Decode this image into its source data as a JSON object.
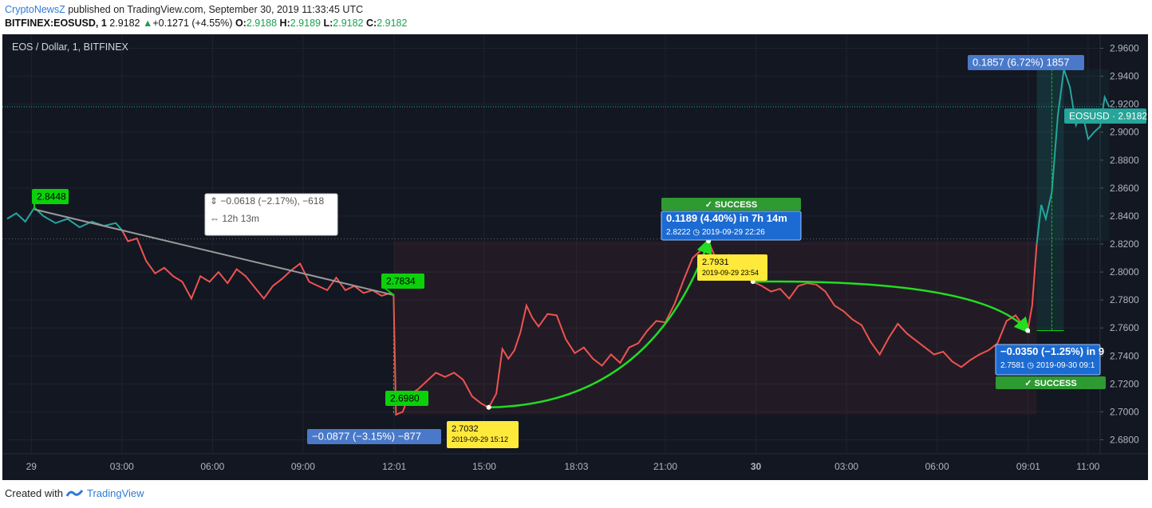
{
  "header": {
    "publisher": "CryptoNewsZ",
    "published_text": "published on TradingView.com, September 30, 2019 11:33:45 UTC",
    "symbol": "BITFINEX:EOSUSD, 1",
    "last": "2.9182",
    "change": "+0.1271 (+4.55%)",
    "open_label": "O:",
    "open": "2.9188",
    "high_label": "H:",
    "high": "2.9189",
    "low_label": "L:",
    "low": "2.9182",
    "close_label": "C:",
    "close": "2.9182"
  },
  "footer": {
    "created_with": "Created with",
    "brand": "TradingView"
  },
  "colors": {
    "background": "#131722",
    "down_line": "#ef5350",
    "up_line": "#26a69a",
    "trend_arrow": "#22dd22",
    "label_green": "#0bd10b",
    "label_blue": "#4a79c9",
    "label_yellow": "#ffe93b",
    "success_green": "#2e9a32",
    "gray_line": "#9a9a9a"
  },
  "chart_data": {
    "type": "line",
    "title": "EOS / Dollar, 1, BITFINEX",
    "ylim": [
      2.67,
      2.97
    ],
    "y_ticks": [
      "2.9600",
      "2.9400",
      "2.9200",
      "2.9000",
      "2.8800",
      "2.8600",
      "2.8400",
      "2.8200",
      "2.8000",
      "2.7800",
      "2.7600",
      "2.7400",
      "2.7200",
      "2.7000",
      "2.6800"
    ],
    "y_tick_values": [
      2.96,
      2.94,
      2.92,
      2.9,
      2.88,
      2.86,
      2.84,
      2.82,
      2.8,
      2.78,
      2.76,
      2.74,
      2.72,
      2.7,
      2.68
    ],
    "x_range_hours": [
      -0.8,
      35.4
    ],
    "x_ticks": [
      {
        "label": "29",
        "t": 0,
        "bold": false
      },
      {
        "label": "03:00",
        "t": 3,
        "bold": false
      },
      {
        "label": "06:00",
        "t": 6,
        "bold": false
      },
      {
        "label": "09:00",
        "t": 9,
        "bold": false
      },
      {
        "label": "12:01",
        "t": 12.02,
        "bold": false
      },
      {
        "label": "15:00",
        "t": 15,
        "bold": false
      },
      {
        "label": "18:03",
        "t": 18.05,
        "bold": false
      },
      {
        "label": "21:00",
        "t": 21,
        "bold": false
      },
      {
        "label": "30",
        "t": 24,
        "bold": true
      },
      {
        "label": "03:00",
        "t": 27,
        "bold": false
      },
      {
        "label": "06:00",
        "t": 30,
        "bold": false
      },
      {
        "label": "09:01",
        "t": 33.02,
        "bold": false
      },
      {
        "label": "11:00",
        "t": 35,
        "bold": false
      }
    ],
    "x_unit": "hours from 2019-09-29 00:00 UTC",
    "last_price_label": "EOSUSD",
    "last_price": 2.9182,
    "series": [
      {
        "color_key": "up_line",
        "points": [
          [
            -0.8,
            2.838
          ],
          [
            -0.5,
            2.842
          ],
          [
            -0.2,
            2.836
          ],
          [
            0.1,
            2.846
          ],
          [
            0.4,
            2.84
          ],
          [
            0.8,
            2.835
          ],
          [
            1.2,
            2.838
          ],
          [
            1.6,
            2.832
          ],
          [
            2.0,
            2.836
          ],
          [
            2.4,
            2.833
          ],
          [
            2.8,
            2.835
          ],
          [
            3.0,
            2.83
          ]
        ]
      },
      {
        "color_key": "down_line",
        "points": [
          [
            3.0,
            2.83
          ],
          [
            3.2,
            2.822
          ],
          [
            3.5,
            2.824
          ],
          [
            3.8,
            2.808
          ],
          [
            4.1,
            2.799
          ],
          [
            4.4,
            2.803
          ],
          [
            4.7,
            2.797
          ],
          [
            5.0,
            2.793
          ],
          [
            5.3,
            2.781
          ],
          [
            5.6,
            2.797
          ],
          [
            5.9,
            2.793
          ],
          [
            6.2,
            2.8
          ],
          [
            6.5,
            2.792
          ],
          [
            6.8,
            2.802
          ],
          [
            7.1,
            2.797
          ],
          [
            7.4,
            2.789
          ],
          [
            7.7,
            2.781
          ],
          [
            8.0,
            2.79
          ],
          [
            8.3,
            2.795
          ],
          [
            8.6,
            2.801
          ],
          [
            8.9,
            2.806
          ],
          [
            9.2,
            2.793
          ],
          [
            9.5,
            2.79
          ],
          [
            9.8,
            2.787
          ],
          [
            10.1,
            2.796
          ],
          [
            10.4,
            2.787
          ],
          [
            10.7,
            2.79
          ],
          [
            11.0,
            2.785
          ],
          [
            11.3,
            2.787
          ],
          [
            11.6,
            2.783
          ],
          [
            11.9,
            2.785
          ],
          [
            12.0,
            2.783
          ],
          [
            12.08,
            2.698
          ],
          [
            12.3,
            2.7
          ],
          [
            12.5,
            2.712
          ],
          [
            12.8,
            2.716
          ],
          [
            13.1,
            2.722
          ],
          [
            13.4,
            2.728
          ],
          [
            13.7,
            2.725
          ],
          [
            14.0,
            2.728
          ],
          [
            14.3,
            2.723
          ],
          [
            14.6,
            2.711
          ],
          [
            14.9,
            2.706
          ],
          [
            15.15,
            2.703
          ],
          [
            15.4,
            2.713
          ],
          [
            15.6,
            2.745
          ],
          [
            15.8,
            2.738
          ],
          [
            16.0,
            2.744
          ],
          [
            16.2,
            2.757
          ],
          [
            16.4,
            2.776
          ],
          [
            16.6,
            2.767
          ],
          [
            16.8,
            2.761
          ],
          [
            17.1,
            2.77
          ],
          [
            17.4,
            2.769
          ],
          [
            17.7,
            2.752
          ],
          [
            18.0,
            2.742
          ],
          [
            18.3,
            2.746
          ],
          [
            18.6,
            2.738
          ],
          [
            18.9,
            2.733
          ],
          [
            19.2,
            2.741
          ],
          [
            19.5,
            2.735
          ],
          [
            19.8,
            2.746
          ],
          [
            20.1,
            2.749
          ],
          [
            20.4,
            2.758
          ],
          [
            20.7,
            2.765
          ],
          [
            21.0,
            2.764
          ],
          [
            21.3,
            2.777
          ],
          [
            21.6,
            2.794
          ],
          [
            21.9,
            2.81
          ],
          [
            22.2,
            2.816
          ],
          [
            22.43,
            2.822
          ],
          [
            22.7,
            2.808
          ],
          [
            22.9,
            2.8
          ],
          [
            23.1,
            2.812
          ],
          [
            23.35,
            2.806
          ],
          [
            23.6,
            2.798
          ],
          [
            23.9,
            2.793
          ],
          [
            24.2,
            2.79
          ],
          [
            24.5,
            2.786
          ],
          [
            24.8,
            2.788
          ],
          [
            25.1,
            2.781
          ],
          [
            25.4,
            2.79
          ],
          [
            25.7,
            2.792
          ],
          [
            26.0,
            2.791
          ],
          [
            26.3,
            2.786
          ],
          [
            26.6,
            2.776
          ],
          [
            26.9,
            2.772
          ],
          [
            27.2,
            2.766
          ],
          [
            27.5,
            2.762
          ],
          [
            27.8,
            2.75
          ],
          [
            28.1,
            2.741
          ],
          [
            28.4,
            2.753
          ],
          [
            28.7,
            2.763
          ],
          [
            29.0,
            2.756
          ],
          [
            29.3,
            2.751
          ],
          [
            29.6,
            2.746
          ],
          [
            29.9,
            2.741
          ],
          [
            30.2,
            2.743
          ],
          [
            30.5,
            2.736
          ],
          [
            30.8,
            2.732
          ],
          [
            31.1,
            2.737
          ],
          [
            31.4,
            2.741
          ],
          [
            31.7,
            2.744
          ],
          [
            32.0,
            2.749
          ],
          [
            32.3,
            2.765
          ],
          [
            32.6,
            2.769
          ],
          [
            32.9,
            2.76
          ],
          [
            33.0,
            2.758
          ],
          [
            33.15,
            2.776
          ],
          [
            33.3,
            2.82
          ]
        ]
      },
      {
        "color_key": "up_line",
        "points": [
          [
            33.3,
            2.82
          ],
          [
            33.45,
            2.848
          ],
          [
            33.6,
            2.838
          ],
          [
            33.8,
            2.857
          ],
          [
            34.0,
            2.912
          ],
          [
            34.2,
            2.945
          ],
          [
            34.4,
            2.932
          ],
          [
            34.6,
            2.905
          ],
          [
            34.8,
            2.915
          ],
          [
            35.0,
            2.895
          ],
          [
            35.2,
            2.9
          ],
          [
            35.4,
            2.904
          ],
          [
            35.55,
            2.925
          ],
          [
            35.7,
            2.918
          ]
        ]
      }
    ],
    "annotations": {
      "label_2_8448": "2.8448",
      "label_2_7834": "2.7834",
      "label_2_6980": "2.6980",
      "measure_top_text": "−0.0618 (−2.17%), −618",
      "measure_bottom_text": "12h 13m",
      "drop_box_text": "−0.0877 (−3.15%) −877",
      "low_price": "2.7032",
      "low_date": "2019-09-29 15:12",
      "success_1": "✓ SUCCESS",
      "gain_1_text": "0.1189 (4.40%) in 7h 14m",
      "gain_1_price": "2.8222",
      "gain_1_date": "◷ 2019-09-29  22:26",
      "mid_price": "2.7931",
      "mid_date": "2019-09-29 23:54",
      "loss_2_text": "−0.0350 (−1.25%) in 9",
      "loss_2_price": "2.7581",
      "loss_2_date": "◷ 2019-09-30  09:1",
      "success_2": "✓ SUCCESS",
      "top_box_text": "0.1857 (6.72%) 1857"
    }
  }
}
